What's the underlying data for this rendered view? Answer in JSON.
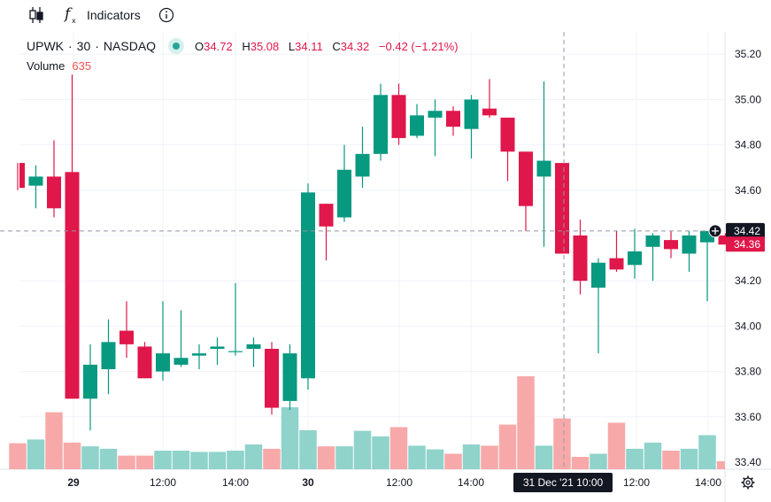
{
  "toolbar": {
    "indicators_label": "Indicators"
  },
  "legend": {
    "symbol": "UPWK",
    "interval": "30",
    "exchange": "NASDAQ",
    "o_label": "O",
    "o": "34.72",
    "h_label": "H",
    "h": "35.08",
    "l_label": "L",
    "l": "34.11",
    "c_label": "C",
    "c": "34.32",
    "change": "−0.42 (−1.21%)",
    "volume_label": "Volume",
    "volume_value": "635"
  },
  "colors": {
    "up": "#089981",
    "down": "#e0174a",
    "vol_up": "#8fd3cb",
    "vol_down": "#f7a9aa",
    "axis_text": "#131722"
  },
  "chart_data": {
    "type": "candlestick",
    "ylim": [
      33.4,
      35.28
    ],
    "y_ticks": [
      "35.20",
      "35.00",
      "34.80",
      "34.60",
      "34.40",
      "34.20",
      "34.00",
      "33.80",
      "33.60",
      "33.40"
    ],
    "x_ticks": [
      "29",
      "12:00",
      "14:00",
      "30",
      "12:00",
      "14:00",
      "12:00",
      "14:00"
    ],
    "crosshair": {
      "price": "34.42",
      "time_label": "31 Dec '21   10:00"
    },
    "last_price": "34.36",
    "candles": [
      {
        "o": 34.72,
        "h": 34.72,
        "l": 34.6,
        "c": 34.61
      },
      {
        "o": 34.62,
        "h": 34.71,
        "l": 34.52,
        "c": 34.66
      },
      {
        "o": 34.66,
        "h": 34.82,
        "l": 34.48,
        "c": 34.52
      },
      {
        "o": 34.68,
        "h": 35.11,
        "l": 33.68,
        "c": 33.68
      },
      {
        "o": 33.68,
        "h": 33.92,
        "l": 33.54,
        "c": 33.83
      },
      {
        "o": 33.81,
        "h": 34.03,
        "l": 33.7,
        "c": 33.93
      },
      {
        "o": 33.98,
        "h": 34.11,
        "l": 33.86,
        "c": 33.92
      },
      {
        "o": 33.91,
        "h": 33.93,
        "l": 33.77,
        "c": 33.77
      },
      {
        "o": 33.8,
        "h": 34.11,
        "l": 33.76,
        "c": 33.88
      },
      {
        "o": 33.83,
        "h": 34.07,
        "l": 33.82,
        "c": 33.86
      },
      {
        "o": 33.87,
        "h": 33.92,
        "l": 33.81,
        "c": 33.88
      },
      {
        "o": 33.9,
        "h": 33.95,
        "l": 33.83,
        "c": 33.91
      },
      {
        "o": 33.89,
        "h": 34.19,
        "l": 33.87,
        "c": 33.89
      },
      {
        "o": 33.9,
        "h": 33.95,
        "l": 33.82,
        "c": 33.92
      },
      {
        "o": 33.9,
        "h": 33.93,
        "l": 33.61,
        "c": 33.64
      },
      {
        "o": 33.67,
        "h": 33.92,
        "l": 33.63,
        "c": 33.88
      },
      {
        "o": 33.77,
        "h": 34.63,
        "l": 33.72,
        "c": 34.59
      },
      {
        "o": 34.54,
        "h": 34.54,
        "l": 34.29,
        "c": 34.44
      },
      {
        "o": 34.48,
        "h": 34.8,
        "l": 34.46,
        "c": 34.69
      },
      {
        "o": 34.66,
        "h": 34.88,
        "l": 34.61,
        "c": 34.76
      },
      {
        "o": 34.76,
        "h": 35.07,
        "l": 34.73,
        "c": 35.02
      },
      {
        "o": 35.02,
        "h": 35.07,
        "l": 34.8,
        "c": 34.83
      },
      {
        "o": 34.84,
        "h": 34.98,
        "l": 34.83,
        "c": 34.93
      },
      {
        "o": 34.92,
        "h": 35.0,
        "l": 34.75,
        "c": 34.95
      },
      {
        "o": 34.95,
        "h": 34.97,
        "l": 34.84,
        "c": 34.88
      },
      {
        "o": 34.87,
        "h": 35.02,
        "l": 34.74,
        "c": 35.0
      },
      {
        "o": 34.96,
        "h": 35.09,
        "l": 34.92,
        "c": 34.93
      },
      {
        "o": 34.92,
        "h": 34.92,
        "l": 34.64,
        "c": 34.77
      },
      {
        "o": 34.77,
        "h": 34.77,
        "l": 34.42,
        "c": 34.53
      },
      {
        "o": 34.66,
        "h": 35.08,
        "l": 34.35,
        "c": 34.73
      },
      {
        "o": 34.72,
        "h": 34.72,
        "l": 34.32,
        "c": 34.32
      },
      {
        "o": 34.4,
        "h": 34.47,
        "l": 34.14,
        "c": 34.2
      },
      {
        "o": 34.17,
        "h": 34.3,
        "l": 33.88,
        "c": 34.28
      },
      {
        "o": 34.3,
        "h": 34.42,
        "l": 34.24,
        "c": 34.25
      },
      {
        "o": 34.27,
        "h": 34.43,
        "l": 34.21,
        "c": 34.33
      },
      {
        "o": 34.35,
        "h": 34.41,
        "l": 34.2,
        "c": 34.4
      },
      {
        "o": 34.38,
        "h": 34.42,
        "l": 34.3,
        "c": 34.34
      },
      {
        "o": 34.32,
        "h": 34.42,
        "l": 34.24,
        "c": 34.4
      },
      {
        "o": 34.37,
        "h": 34.42,
        "l": 34.11,
        "c": 34.42
      },
      {
        "o": 34.4,
        "h": 34.41,
        "l": 34.36,
        "c": 34.36
      }
    ],
    "volume_relative": [
      0.42,
      0.48,
      0.92,
      0.43,
      0.37,
      0.33,
      0.22,
      0.22,
      0.3,
      0.3,
      0.28,
      0.28,
      0.3,
      0.4,
      0.33,
      1.0,
      0.63,
      0.37,
      0.37,
      0.62,
      0.53,
      0.68,
      0.38,
      0.32,
      0.25,
      0.4,
      0.38,
      0.72,
      1.5,
      0.38,
      0.82,
      0.2,
      0.25,
      0.75,
      0.33,
      0.43,
      0.3,
      0.33,
      0.55,
      0.13
    ]
  }
}
